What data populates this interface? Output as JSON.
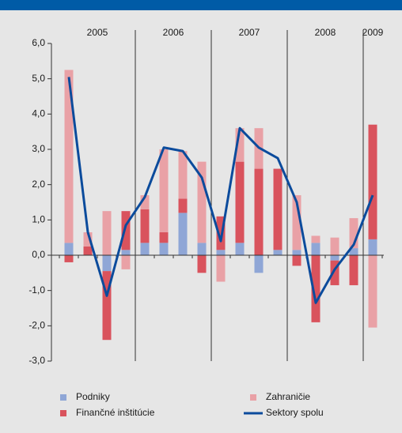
{
  "chart_data": {
    "type": "stacked-bar-line",
    "categories": [
      null,
      null,
      null,
      null,
      null,
      null,
      null,
      null,
      null,
      null,
      null,
      null,
      null,
      null,
      null,
      null,
      null
    ],
    "year_groups": [
      "2005",
      "2006",
      "2007",
      "2008",
      "2009"
    ],
    "series": [
      {
        "name": "Podniky",
        "color": "#8fa6d6",
        "kind": "bar",
        "values": [
          0.35,
          0,
          -0.45,
          0.15,
          0.35,
          0.35,
          1.2,
          0.35,
          0.15,
          0.35,
          -0.5,
          0.15,
          0.15,
          0.35,
          -0.15,
          0.2,
          0.45
        ]
      },
      {
        "name": "Finančné inštitúcie",
        "color": "#d9535d",
        "kind": "bar",
        "values": [
          -0.2,
          0.25,
          -1.95,
          1.1,
          0.95,
          0.3,
          0.4,
          -0.5,
          0.95,
          2.3,
          2.45,
          2.3,
          -0.3,
          -1.9,
          -0.7,
          -0.85,
          3.25
        ]
      },
      {
        "name": "Zahraničie",
        "color": "#e9a1a6",
        "kind": "bar",
        "values": [
          4.9,
          0.4,
          1.25,
          -0.4,
          0.4,
          2.35,
          1.35,
          2.3,
          -0.75,
          0.95,
          1.15,
          0,
          1.55,
          0.2,
          0.5,
          0.85,
          -2.05
        ]
      },
      {
        "name": "Sektory spolu",
        "color": "#0b4b9c",
        "kind": "line",
        "values": [
          5.05,
          0.65,
          -1.15,
          0.85,
          1.65,
          3.05,
          2.95,
          2.2,
          0.4,
          3.6,
          3.05,
          2.75,
          1.5,
          -1.35,
          -0.4,
          0.3,
          1.7
        ]
      }
    ],
    "ylim": [
      -3,
      6
    ],
    "yticks": [
      {
        "value": -3,
        "label": "-3,0"
      },
      {
        "value": -2,
        "label": "-2,0"
      },
      {
        "value": -1,
        "label": "-1,0"
      },
      {
        "value": 0,
        "label": "0,0"
      },
      {
        "value": 1,
        "label": "1,0"
      },
      {
        "value": 2,
        "label": "2,0"
      },
      {
        "value": 3,
        "label": "3,0"
      },
      {
        "value": 4,
        "label": "4,0"
      },
      {
        "value": 5,
        "label": "5,0"
      },
      {
        "value": 6,
        "label": "6,0"
      }
    ],
    "legend": "bottom"
  }
}
